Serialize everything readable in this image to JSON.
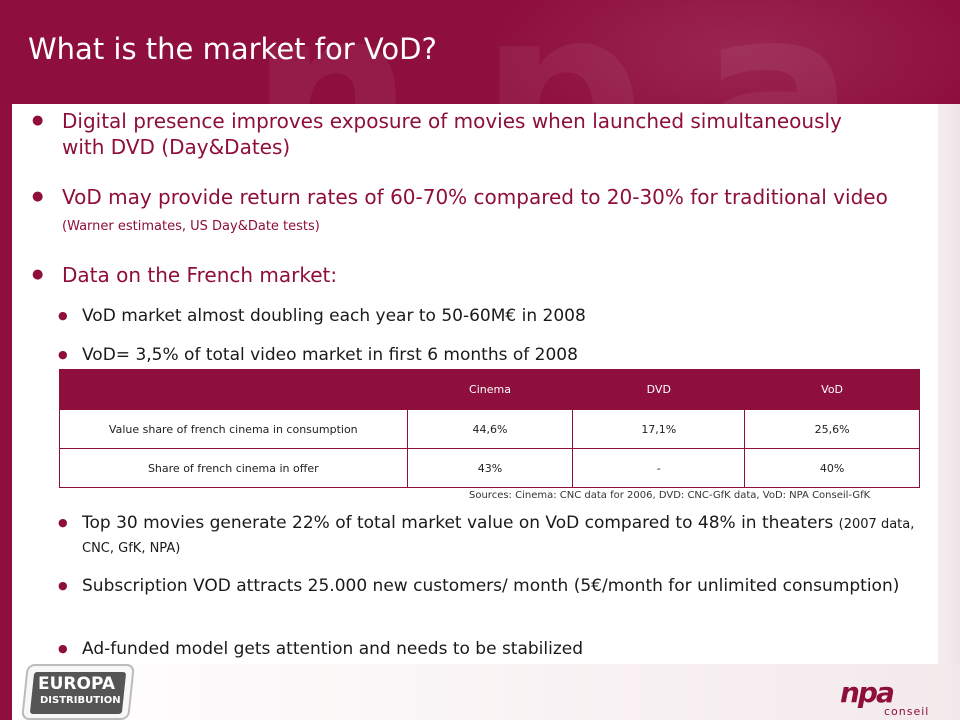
{
  "title": "What is the market for VoD?",
  "bullets": [
    {
      "text": "Digital presence improves exposure of movies when launched simultaneously with DVD (Day&Dates)"
    },
    {
      "text": "VoD may provide return rates of 60-70% compared to 20-30% for traditional video",
      "note": "(Warner estimates, US Day&Date tests)"
    },
    {
      "text": "Data on the French market:"
    }
  ],
  "sub_bullets_top": [
    {
      "text": "VoD market almost doubling each year to 50-60M€ in 2008"
    },
    {
      "text": "VoD= 3,5% of total video market in first 6 months of 2008"
    }
  ],
  "table": {
    "headers": [
      "",
      "Cinema",
      "DVD",
      "VoD"
    ],
    "rows": [
      [
        "Value share of french cinema in consumption",
        "44,6%",
        "17,1%",
        "25,6%"
      ],
      [
        "Share of french cinema in offer",
        "43%",
        "-",
        "40%"
      ]
    ]
  },
  "sources": "Sources: Cinema: CNC data for 2006, DVD: CNC-GfK data, VoD: NPA Conseil-GfK",
  "sub_bullets_bottom": [
    {
      "text": "Top 30 movies generate 22% of total market value on VoD compared to 48% in theaters",
      "note": "(2007 data, CNC, GfK, NPA)"
    },
    {
      "text": "Subscription VOD attracts 25.000 new customers/ month (5€/month for unlimited consumption)"
    },
    {
      "text": "Ad-funded model gets attention and needs to be stabilized"
    }
  ],
  "logos": {
    "left": {
      "line1": "EUROPA",
      "line2": "DISTRIBUTION"
    },
    "right": {
      "mark": "npa",
      "sub": "conseil"
    }
  },
  "colors": {
    "brand": "#8e0e3c",
    "text": "#1a1a1a"
  }
}
